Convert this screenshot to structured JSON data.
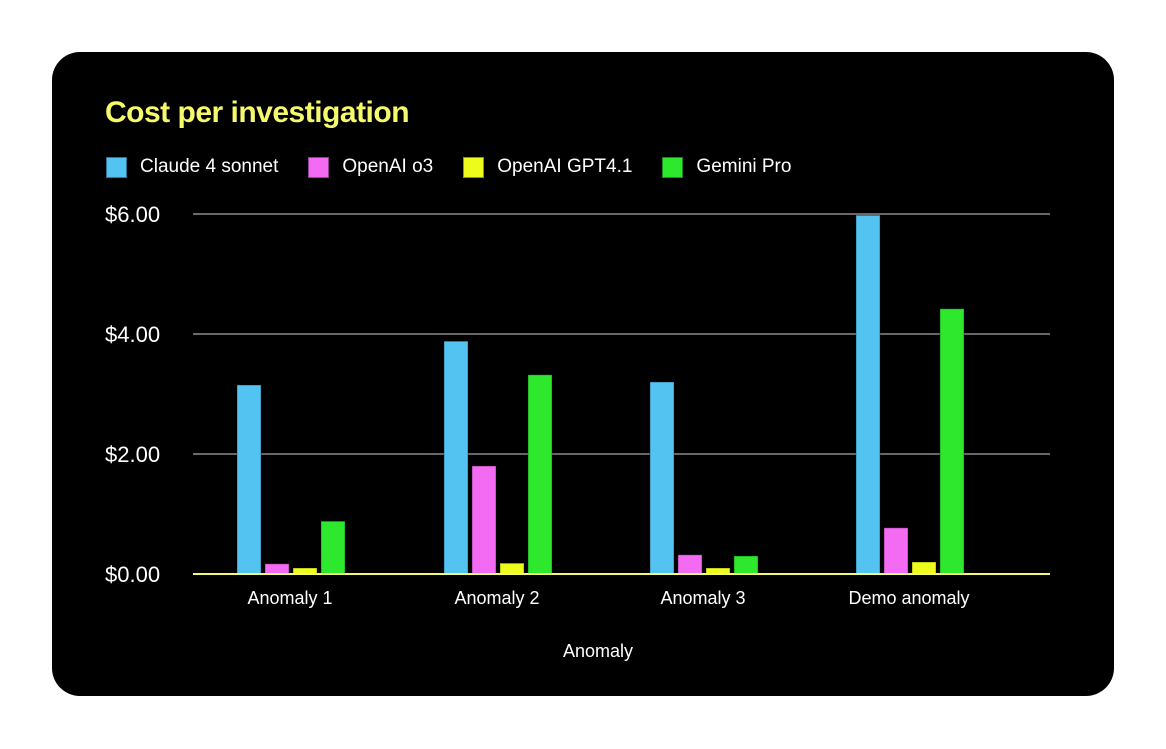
{
  "chart_data": {
    "type": "bar",
    "title": "Cost per investigation",
    "xlabel": "Anomaly",
    "ylabel": "",
    "categories": [
      "Anomaly 1",
      "Anomaly 2",
      "Anomaly 3",
      "Demo anomaly"
    ],
    "series": [
      {
        "name": "Claude 4 sonnet",
        "color": "#53c4f2",
        "values": [
          3.15,
          3.88,
          3.2,
          5.98
        ]
      },
      {
        "name": "OpenAI o3",
        "color": "#f26bf2",
        "values": [
          0.17,
          1.8,
          0.32,
          0.77
        ]
      },
      {
        "name": "OpenAI GPT4.1",
        "color": "#eefc1c",
        "values": [
          0.1,
          0.18,
          0.1,
          0.2
        ]
      },
      {
        "name": "Gemini Pro",
        "color": "#2de82d",
        "values": [
          0.88,
          3.32,
          0.3,
          4.42
        ]
      }
    ],
    "ylim": [
      0,
      6
    ],
    "yticks": [
      0,
      2,
      4,
      6
    ],
    "ytick_labels": [
      "$0.00",
      "$2.00",
      "$4.00",
      "$6.00"
    ],
    "grid": true,
    "legend_position": "top-left"
  }
}
